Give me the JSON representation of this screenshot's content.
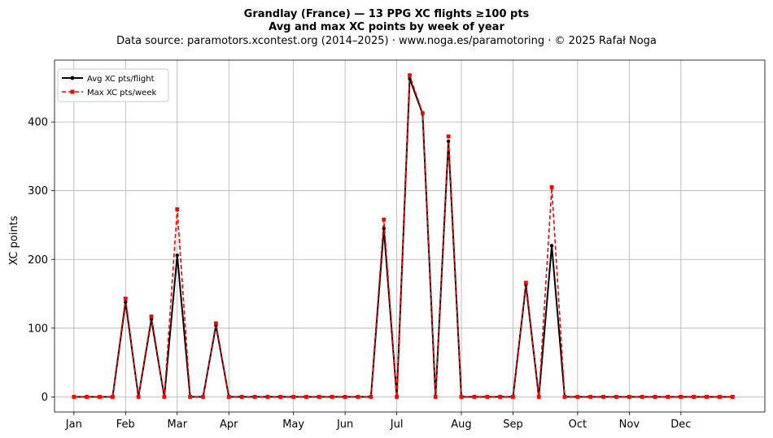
{
  "chart_data": {
    "type": "line",
    "title_line1": "Grandlay (France)  —  13 PPG XC flights ≥100 pts",
    "title_line2": "Avg and max XC points by week of year",
    "subtitle": "Data source: paramotors.xcontest.org (2014–2025)  ·  www.noga.es/paramotoring  ·  © 2025 Rafał Noga",
    "xlabel": "",
    "ylabel": "XC points",
    "xlim": [
      -1.5,
      53.5
    ],
    "ylim": [
      -22,
      490
    ],
    "grid": true,
    "legend_position": "top-left",
    "x_ticks": [
      {
        "label": "Jan",
        "week": 0
      },
      {
        "label": "Feb",
        "week": 4
      },
      {
        "label": "Mar",
        "week": 8
      },
      {
        "label": "Apr",
        "week": 12
      },
      {
        "label": "May",
        "week": 17
      },
      {
        "label": "Jun",
        "week": 21
      },
      {
        "label": "Jul",
        "week": 25
      },
      {
        "label": "Aug",
        "week": 30
      },
      {
        "label": "Sep",
        "week": 34
      },
      {
        "label": "Oct",
        "week": 39
      },
      {
        "label": "Nov",
        "week": 43
      },
      {
        "label": "Dec",
        "week": 47
      }
    ],
    "y_ticks": [
      0,
      100,
      200,
      300,
      400
    ],
    "weeks": [
      0,
      1,
      2,
      3,
      4,
      5,
      6,
      7,
      8,
      9,
      10,
      11,
      12,
      13,
      14,
      15,
      16,
      17,
      18,
      19,
      20,
      21,
      22,
      23,
      24,
      25,
      26,
      27,
      28,
      29,
      30,
      31,
      32,
      33,
      34,
      35,
      36,
      37,
      38,
      39,
      40,
      41,
      42,
      43,
      44,
      45,
      46,
      47,
      48,
      49,
      50,
      51
    ],
    "series": [
      {
        "name": "Avg XC pts/flight",
        "color": "#000000",
        "style": "solid",
        "marker": "circle",
        "values": [
          0,
          0,
          0,
          0,
          138,
          0,
          113,
          0,
          206,
          0,
          0,
          104,
          0,
          0,
          0,
          0,
          0,
          0,
          0,
          0,
          0,
          0,
          0,
          0,
          245,
          0,
          463,
          412,
          0,
          372,
          0,
          0,
          0,
          0,
          0,
          163,
          0,
          220,
          0,
          0,
          0,
          0,
          0,
          0,
          0,
          0,
          0,
          0,
          0,
          0,
          0,
          0
        ]
      },
      {
        "name": "Max XC pts/week",
        "color": "#ff0000",
        "style": "dashed",
        "marker": "square",
        "values": [
          0,
          0,
          0,
          0,
          143,
          0,
          117,
          0,
          273,
          0,
          0,
          107,
          0,
          0,
          0,
          0,
          0,
          0,
          0,
          0,
          0,
          0,
          0,
          0,
          258,
          0,
          468,
          413,
          0,
          379,
          0,
          0,
          0,
          0,
          0,
          166,
          0,
          305,
          0,
          0,
          0,
          0,
          0,
          0,
          0,
          0,
          0,
          0,
          0,
          0,
          0,
          0
        ]
      }
    ]
  }
}
